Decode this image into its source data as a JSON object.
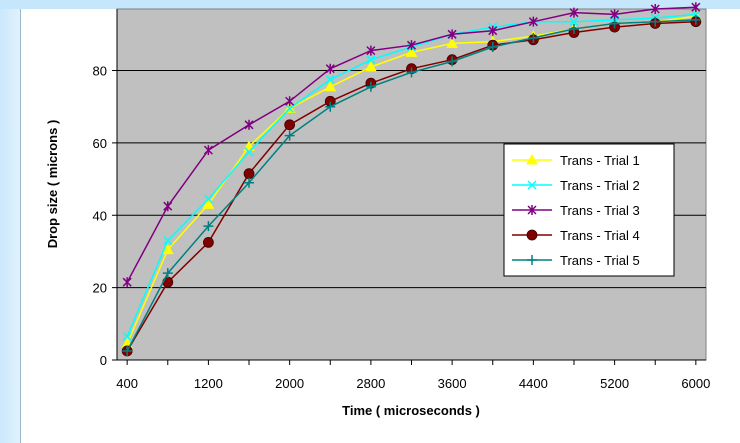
{
  "chart_data": {
    "type": "line",
    "title": "",
    "xlabel": "Time ( microseconds )",
    "ylabel": "Drop size ( microns )",
    "x": [
      400,
      800,
      1200,
      1600,
      2000,
      2400,
      2800,
      3200,
      3600,
      4000,
      4400,
      4800,
      5200,
      5600,
      6000
    ],
    "x_tick_labels": [
      "400",
      "1200",
      "2000",
      "2800",
      "3600",
      "4400",
      "5200",
      "6000"
    ],
    "y_tick_labels": [
      "0",
      "20",
      "40",
      "60",
      "80"
    ],
    "xlim": [
      400,
      6000
    ],
    "ylim": [
      0,
      97
    ],
    "y_ticks": [
      0,
      20,
      40,
      60,
      80
    ],
    "grid": "horizontal",
    "plot_background": "#c0c0c0",
    "legend_position": "right",
    "series": [
      {
        "name": "Trans - Trial 1",
        "color": "#ffff00",
        "marker": "triangle",
        "values": [
          4.5,
          30.5,
          43.0,
          59.0,
          69.5,
          75.5,
          81.0,
          85.0,
          87.5,
          88.0,
          89.5,
          91.5,
          93.0,
          93.5,
          95.0
        ]
      },
      {
        "name": "Trans - Trial 2",
        "color": "#00ffff",
        "marker": "x",
        "values": [
          6.5,
          33.0,
          44.5,
          57.5,
          69.5,
          77.5,
          83.0,
          86.5,
          90.0,
          92.0,
          93.5,
          93.5,
          94.0,
          94.5,
          95.5
        ]
      },
      {
        "name": "Trans - Trial 3",
        "color": "#800080",
        "marker": "star",
        "values": [
          21.5,
          42.5,
          58.0,
          65.0,
          71.5,
          80.5,
          85.5,
          87.0,
          90.0,
          91.0,
          93.5,
          96.0,
          95.5,
          97.0,
          97.5
        ]
      },
      {
        "name": "Trans - Trial 4",
        "color": "#800000",
        "marker": "circle",
        "values": [
          2.5,
          21.5,
          32.5,
          51.5,
          65.0,
          71.5,
          76.5,
          80.5,
          83.0,
          87.0,
          88.5,
          90.5,
          92.0,
          93.0,
          93.5
        ]
      },
      {
        "name": "Trans - Trial 5",
        "color": "#008080",
        "marker": "plus",
        "values": [
          2.5,
          24.0,
          37.0,
          49.0,
          62.0,
          70.0,
          75.5,
          79.5,
          82.5,
          86.5,
          89.0,
          91.5,
          93.0,
          93.5,
          94.0
        ]
      }
    ]
  }
}
